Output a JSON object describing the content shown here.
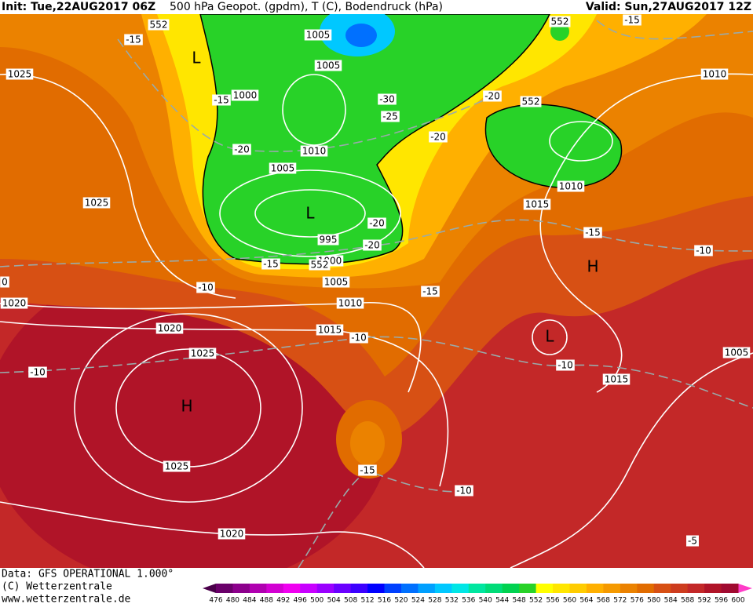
{
  "header": {
    "init": "Init: Tue,22AUG2017 06Z",
    "title": "500 hPa Geopot. (gpdm), T (C), Bodendruck (hPa)",
    "valid": "Valid: Sun,27AUG2017 12Z"
  },
  "map_labels": [
    "1005",
    "1005",
    "1000",
    "1010",
    "1005",
    "L",
    "995",
    "1000",
    "1005",
    "1010",
    "1015",
    "1020",
    "1025",
    "H",
    "1025",
    "1020",
    "1020",
    "1025",
    "1025",
    "1010",
    "1010",
    "1015",
    "H",
    "L",
    "1015",
    "1005",
    "552",
    "552",
    "552",
    "552",
    "L",
    "-15",
    "-15",
    "-20",
    "-30",
    "-25",
    "-20",
    "-20",
    "-20",
    "-20",
    "-15",
    "-10",
    "-15",
    "-10",
    "-15",
    "-10",
    "-15",
    "-10",
    "-10",
    "-15",
    "-10",
    "-5",
    "0"
  ],
  "footer": {
    "data": "Data: GFS OPERATIONAL 1.000°",
    "copyright": "(C) Wetterzentrale",
    "url": "www.wetterzentrale.de"
  },
  "colorbar": {
    "ticks": [
      476,
      480,
      484,
      488,
      492,
      496,
      500,
      504,
      508,
      512,
      516,
      520,
      524,
      528,
      532,
      536,
      540,
      544,
      548,
      552,
      556,
      560,
      564,
      568,
      572,
      576,
      580,
      584,
      588,
      592,
      596,
      600
    ],
    "colors": [
      "#6a006a",
      "#8c008c",
      "#b000b0",
      "#d200d2",
      "#f000f0",
      "#c800ff",
      "#9a00ff",
      "#6a00ff",
      "#3c00ff",
      "#0000ff",
      "#0040ff",
      "#0070ff",
      "#00a0ff",
      "#00c8ff",
      "#00e6e6",
      "#00e6a0",
      "#00dc78",
      "#00d250",
      "#28d228",
      "#ffff00",
      "#ffe600",
      "#ffcc00",
      "#ffb000",
      "#f59a00",
      "#eb8200",
      "#e16c00",
      "#d75014",
      "#cd3c1e",
      "#c32828",
      "#b01428",
      "#a00a30"
    ],
    "under": "#4a004a",
    "over": "#ff3cc8"
  }
}
